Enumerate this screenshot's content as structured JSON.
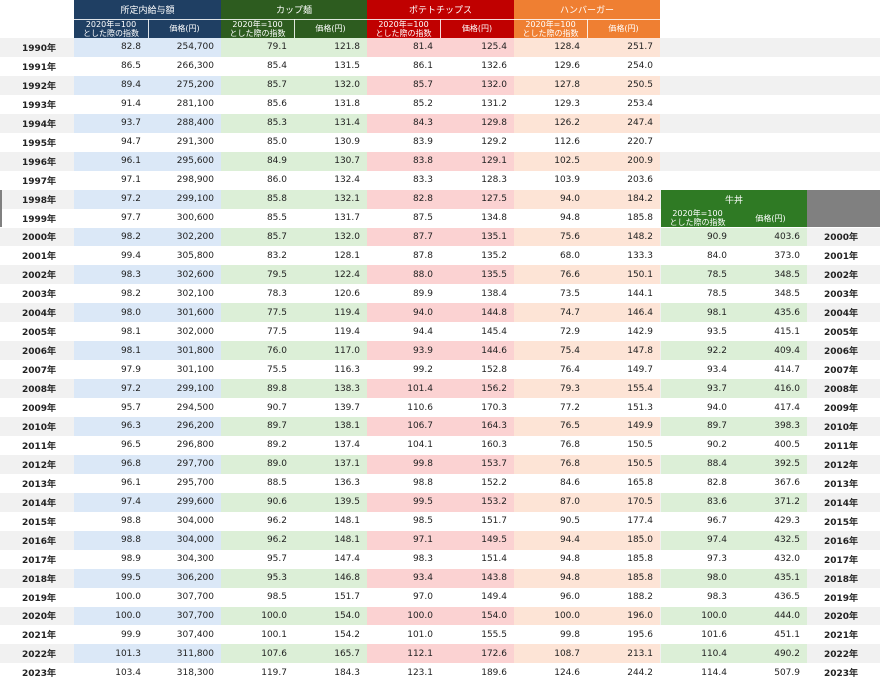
{
  "years": [
    "1990年",
    "1991年",
    "1992年",
    "1993年",
    "1994年",
    "1995年",
    "1996年",
    "1997年",
    "1998年",
    "1999年",
    "2000年",
    "2001年",
    "2002年",
    "2003年",
    "2004年",
    "2005年",
    "2006年",
    "2007年",
    "2008年",
    "2009年",
    "2010年",
    "2011年",
    "2012年",
    "2013年",
    "2014年",
    "2015年",
    "2016年",
    "2017年",
    "2018年",
    "2019年",
    "2020年",
    "2021年",
    "2022年",
    "2023年"
  ],
  "index_label": "2020年=100\nとした際の指数",
  "price_label": "価格(円)",
  "groups": [
    {
      "title": "所定内給与額",
      "color": "#1f3f63",
      "tint": "#dbe8f7"
    },
    {
      "title": "カップ麺",
      "color": "#2d5c1f",
      "tint": "#dcefd7"
    },
    {
      "title": "ポテトチップス",
      "color": "#c00000",
      "tint": "#fbd2d2"
    },
    {
      "title": "ハンバーガー",
      "color": "#ef7f32",
      "tint": "#fde4d6"
    },
    {
      "title": "牛丼",
      "color": "#2f7a24",
      "tint": "#dcefd7"
    }
  ],
  "salary": [
    [
      "82.8",
      "254,700"
    ],
    [
      "86.5",
      "266,300"
    ],
    [
      "89.4",
      "275,200"
    ],
    [
      "91.4",
      "281,100"
    ],
    [
      "93.7",
      "288,400"
    ],
    [
      "94.7",
      "291,300"
    ],
    [
      "96.1",
      "295,600"
    ],
    [
      "97.1",
      "298,900"
    ],
    [
      "97.2",
      "299,100"
    ],
    [
      "97.7",
      "300,600"
    ],
    [
      "98.2",
      "302,200"
    ],
    [
      "99.4",
      "305,800"
    ],
    [
      "98.3",
      "302,600"
    ],
    [
      "98.2",
      "302,100"
    ],
    [
      "98.0",
      "301,600"
    ],
    [
      "98.1",
      "302,000"
    ],
    [
      "98.1",
      "301,800"
    ],
    [
      "97.9",
      "301,100"
    ],
    [
      "97.2",
      "299,100"
    ],
    [
      "95.7",
      "294,500"
    ],
    [
      "96.3",
      "296,200"
    ],
    [
      "96.5",
      "296,800"
    ],
    [
      "96.8",
      "297,700"
    ],
    [
      "96.1",
      "295,700"
    ],
    [
      "97.4",
      "299,600"
    ],
    [
      "98.8",
      "304,000"
    ],
    [
      "98.8",
      "304,000"
    ],
    [
      "98.9",
      "304,300"
    ],
    [
      "99.5",
      "306,200"
    ],
    [
      "100.0",
      "307,700"
    ],
    [
      "100.0",
      "307,700"
    ],
    [
      "99.9",
      "307,400"
    ],
    [
      "101.3",
      "311,800"
    ],
    [
      "103.4",
      "318,300"
    ]
  ],
  "cup": [
    [
      "79.1",
      "121.8"
    ],
    [
      "85.4",
      "131.5"
    ],
    [
      "85.7",
      "132.0"
    ],
    [
      "85.6",
      "131.8"
    ],
    [
      "85.3",
      "131.4"
    ],
    [
      "85.0",
      "130.9"
    ],
    [
      "84.9",
      "130.7"
    ],
    [
      "86.0",
      "132.4"
    ],
    [
      "85.8",
      "132.1"
    ],
    [
      "85.5",
      "131.7"
    ],
    [
      "85.7",
      "132.0"
    ],
    [
      "83.2",
      "128.1"
    ],
    [
      "79.5",
      "122.4"
    ],
    [
      "78.3",
      "120.6"
    ],
    [
      "77.5",
      "119.4"
    ],
    [
      "77.5",
      "119.4"
    ],
    [
      "76.0",
      "117.0"
    ],
    [
      "75.5",
      "116.3"
    ],
    [
      "89.8",
      "138.3"
    ],
    [
      "90.7",
      "139.7"
    ],
    [
      "89.7",
      "138.1"
    ],
    [
      "89.2",
      "137.4"
    ],
    [
      "89.0",
      "137.1"
    ],
    [
      "88.5",
      "136.3"
    ],
    [
      "90.6",
      "139.5"
    ],
    [
      "96.2",
      "148.1"
    ],
    [
      "96.2",
      "148.1"
    ],
    [
      "95.7",
      "147.4"
    ],
    [
      "95.3",
      "146.8"
    ],
    [
      "98.5",
      "151.7"
    ],
    [
      "100.0",
      "154.0"
    ],
    [
      "100.1",
      "154.2"
    ],
    [
      "107.6",
      "165.7"
    ],
    [
      "119.7",
      "184.3"
    ]
  ],
  "chips": [
    [
      "81.4",
      "125.4"
    ],
    [
      "86.1",
      "132.6"
    ],
    [
      "85.7",
      "132.0"
    ],
    [
      "85.2",
      "131.2"
    ],
    [
      "84.3",
      "129.8"
    ],
    [
      "83.9",
      "129.2"
    ],
    [
      "83.8",
      "129.1"
    ],
    [
      "83.3",
      "128.3"
    ],
    [
      "82.8",
      "127.5"
    ],
    [
      "87.5",
      "134.8"
    ],
    [
      "87.7",
      "135.1"
    ],
    [
      "87.8",
      "135.2"
    ],
    [
      "88.0",
      "135.5"
    ],
    [
      "89.9",
      "138.4"
    ],
    [
      "94.0",
      "144.8"
    ],
    [
      "94.4",
      "145.4"
    ],
    [
      "93.9",
      "144.6"
    ],
    [
      "99.2",
      "152.8"
    ],
    [
      "101.4",
      "156.2"
    ],
    [
      "110.6",
      "170.3"
    ],
    [
      "106.7",
      "164.3"
    ],
    [
      "104.1",
      "160.3"
    ],
    [
      "99.8",
      "153.7"
    ],
    [
      "98.8",
      "152.2"
    ],
    [
      "99.5",
      "153.2"
    ],
    [
      "98.5",
      "151.7"
    ],
    [
      "97.1",
      "149.5"
    ],
    [
      "98.3",
      "151.4"
    ],
    [
      "93.4",
      "143.8"
    ],
    [
      "97.0",
      "149.4"
    ],
    [
      "100.0",
      "154.0"
    ],
    [
      "101.0",
      "155.5"
    ],
    [
      "112.1",
      "172.6"
    ],
    [
      "123.1",
      "189.6"
    ]
  ],
  "burger": [
    [
      "128.4",
      "251.7"
    ],
    [
      "129.6",
      "254.0"
    ],
    [
      "127.8",
      "250.5"
    ],
    [
      "129.3",
      "253.4"
    ],
    [
      "126.2",
      "247.4"
    ],
    [
      "112.6",
      "220.7"
    ],
    [
      "102.5",
      "200.9"
    ],
    [
      "103.9",
      "203.6"
    ],
    [
      "94.0",
      "184.2"
    ],
    [
      "94.8",
      "185.8"
    ],
    [
      "75.6",
      "148.2"
    ],
    [
      "68.0",
      "133.3"
    ],
    [
      "76.6",
      "150.1"
    ],
    [
      "73.5",
      "144.1"
    ],
    [
      "74.7",
      "146.4"
    ],
    [
      "72.9",
      "142.9"
    ],
    [
      "75.4",
      "147.8"
    ],
    [
      "76.4",
      "149.7"
    ],
    [
      "79.3",
      "155.4"
    ],
    [
      "77.2",
      "151.3"
    ],
    [
      "76.5",
      "149.9"
    ],
    [
      "76.8",
      "150.5"
    ],
    [
      "76.8",
      "150.5"
    ],
    [
      "84.6",
      "165.8"
    ],
    [
      "87.0",
      "170.5"
    ],
    [
      "90.5",
      "177.4"
    ],
    [
      "94.4",
      "185.0"
    ],
    [
      "94.8",
      "185.8"
    ],
    [
      "94.8",
      "185.8"
    ],
    [
      "96.0",
      "188.2"
    ],
    [
      "100.0",
      "196.0"
    ],
    [
      "99.8",
      "195.6"
    ],
    [
      "108.7",
      "213.1"
    ],
    [
      "124.6",
      "244.2"
    ]
  ],
  "gyudon": [
    [
      "90.9",
      "403.6"
    ],
    [
      "84.0",
      "373.0"
    ],
    [
      "78.5",
      "348.5"
    ],
    [
      "78.5",
      "348.5"
    ],
    [
      "98.1",
      "435.6"
    ],
    [
      "93.5",
      "415.1"
    ],
    [
      "92.2",
      "409.4"
    ],
    [
      "93.4",
      "414.7"
    ],
    [
      "93.7",
      "416.0"
    ],
    [
      "94.0",
      "417.4"
    ],
    [
      "89.7",
      "398.3"
    ],
    [
      "90.2",
      "400.5"
    ],
    [
      "88.4",
      "392.5"
    ],
    [
      "82.8",
      "367.6"
    ],
    [
      "83.6",
      "371.2"
    ],
    [
      "96.7",
      "429.3"
    ],
    [
      "97.4",
      "432.5"
    ],
    [
      "97.3",
      "432.0"
    ],
    [
      "98.0",
      "435.1"
    ],
    [
      "98.3",
      "436.5"
    ],
    [
      "100.0",
      "444.0"
    ],
    [
      "101.6",
      "451.1"
    ],
    [
      "110.4",
      "490.2"
    ],
    [
      "114.4",
      "507.9"
    ]
  ]
}
